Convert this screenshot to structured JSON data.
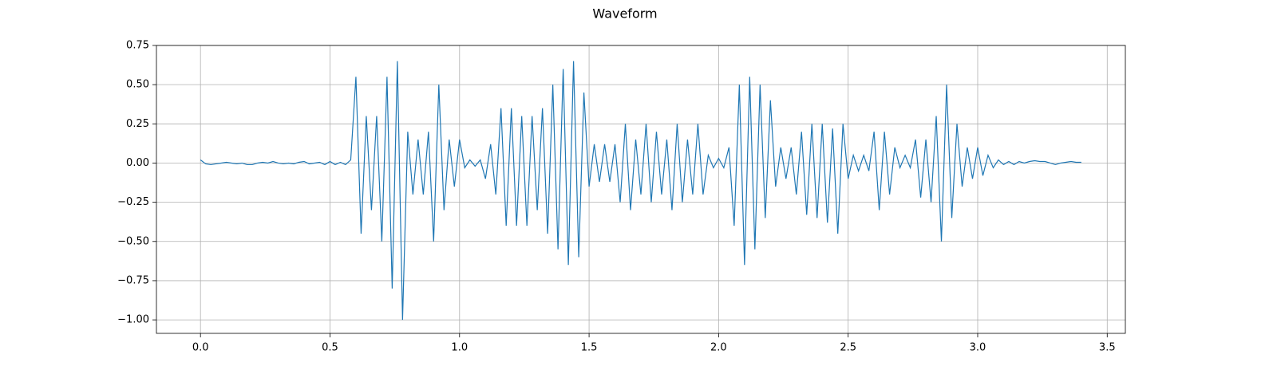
{
  "chart_data": {
    "type": "line",
    "title": "Waveform",
    "color": "#1f77b4",
    "grid": true,
    "xlim": [
      -0.17,
      3.57
    ],
    "ylim": [
      -1.086,
      0.75
    ],
    "xticks": [
      {
        "value": 0,
        "label": "0.0"
      },
      {
        "value": 0.5,
        "label": "0.5"
      },
      {
        "value": 1,
        "label": "1.0"
      },
      {
        "value": 1.5,
        "label": "1.5"
      },
      {
        "value": 2,
        "label": "2.0"
      },
      {
        "value": 2.5,
        "label": "2.5"
      },
      {
        "value": 3,
        "label": "3.0"
      },
      {
        "value": 3.5,
        "label": "3.5"
      }
    ],
    "yticks": [
      0.75,
      {
        "value": 0.5,
        "label": "0.50"
      },
      {
        "value": 0.25,
        "label": "0.25"
      },
      {
        "value": 0,
        "label": "0.00"
      },
      {
        "value": -0.25,
        "label": "−0.25"
      },
      {
        "value": -0.5,
        "label": "−0.50"
      },
      {
        "value": -0.75,
        "label": "−0.75"
      },
      {
        "value": -1,
        "label": "−1.00"
      }
    ],
    "x": [
      0,
      0.02,
      0.04,
      0.06,
      0.08,
      0.1,
      0.12,
      0.14,
      0.16,
      0.18,
      0.2,
      0.22,
      0.24,
      0.26,
      0.28,
      0.3,
      0.32,
      0.34,
      0.36,
      0.38,
      0.4,
      0.42,
      0.44,
      0.46,
      0.48,
      0.5,
      0.52,
      0.54,
      0.56,
      0.58,
      0.6,
      0.62,
      0.64,
      0.66,
      0.68,
      0.7,
      0.72,
      0.74,
      0.76,
      0.78,
      0.8,
      0.82,
      0.84,
      0.86,
      0.88,
      0.9,
      0.92,
      0.94,
      0.96,
      0.98,
      1,
      1.02,
      1.04,
      1.06,
      1.08,
      1.1,
      1.12,
      1.14,
      1.16,
      1.18,
      1.2,
      1.22,
      1.24,
      1.26,
      1.28,
      1.3,
      1.32,
      1.34,
      1.36,
      1.38,
      1.4,
      1.42,
      1.44,
      1.46,
      1.48,
      1.5,
      1.52,
      1.54,
      1.56,
      1.58,
      1.6,
      1.62,
      1.64,
      1.66,
      1.68,
      1.7,
      1.72,
      1.74,
      1.76,
      1.78,
      1.8,
      1.82,
      1.84,
      1.86,
      1.88,
      1.9,
      1.92,
      1.94,
      1.96,
      1.98,
      2,
      2.02,
      2.04,
      2.06,
      2.08,
      2.1,
      2.12,
      2.14,
      2.16,
      2.18,
      2.2,
      2.22,
      2.24,
      2.26,
      2.28,
      2.3,
      2.32,
      2.34,
      2.36,
      2.38,
      2.4,
      2.42,
      2.44,
      2.46,
      2.48,
      2.5,
      2.52,
      2.54,
      2.56,
      2.58,
      2.6,
      2.62,
      2.64,
      2.66,
      2.68,
      2.7,
      2.72,
      2.74,
      2.76,
      2.78,
      2.8,
      2.82,
      2.84,
      2.86,
      2.88,
      2.9,
      2.92,
      2.94,
      2.96,
      2.98,
      3,
      3.02,
      3.04,
      3.06,
      3.08,
      3.1,
      3.12,
      3.14,
      3.16,
      3.18,
      3.2,
      3.22,
      3.24,
      3.26,
      3.28,
      3.3,
      3.32,
      3.34,
      3.36,
      3.38,
      3.4
    ],
    "values": [
      0.02,
      -0.005,
      -0.01,
      -0.005,
      0,
      0.005,
      0,
      -0.005,
      0,
      -0.01,
      -0.01,
      0,
      0.005,
      0,
      0.01,
      0,
      -0.005,
      0,
      -0.005,
      0.005,
      0.01,
      -0.005,
      0,
      0.005,
      -0.01,
      0.01,
      -0.01,
      0.005,
      -0.01,
      0.02,
      0.55,
      -0.45,
      0.3,
      -0.3,
      0.3,
      -0.5,
      0.55,
      -0.8,
      0.65,
      -1.0,
      0.2,
      -0.2,
      0.15,
      -0.2,
      0.2,
      -0.5,
      0.5,
      -0.3,
      0.15,
      -0.15,
      0.15,
      -0.03,
      0.02,
      -0.02,
      0.02,
      -0.1,
      0.12,
      -0.2,
      0.35,
      -0.4,
      0.35,
      -0.4,
      0.3,
      -0.4,
      0.3,
      -0.3,
      0.35,
      -0.45,
      0.5,
      -0.55,
      0.6,
      -0.65,
      0.65,
      -0.6,
      0.45,
      -0.15,
      0.12,
      -0.12,
      0.12,
      -0.12,
      0.12,
      -0.25,
      0.25,
      -0.3,
      0.15,
      -0.2,
      0.25,
      -0.25,
      0.2,
      -0.2,
      0.15,
      -0.3,
      0.25,
      -0.25,
      0.15,
      -0.2,
      0.25,
      -0.2,
      0.05,
      -0.03,
      0.03,
      -0.03,
      0.1,
      -0.4,
      0.5,
      -0.65,
      0.55,
      -0.55,
      0.5,
      -0.35,
      0.4,
      -0.15,
      0.1,
      -0.1,
      0.1,
      -0.2,
      0.2,
      -0.33,
      0.25,
      -0.35,
      0.25,
      -0.38,
      0.22,
      -0.45,
      0.25,
      -0.1,
      0.05,
      -0.05,
      0.05,
      -0.05,
      0.2,
      -0.3,
      0.2,
      -0.2,
      0.1,
      -0.03,
      0.05,
      -0.03,
      0.15,
      -0.22,
      0.15,
      -0.25,
      0.3,
      -0.5,
      0.5,
      -0.35,
      0.25,
      -0.15,
      0.1,
      -0.1,
      0.1,
      -0.08,
      0.05,
      -0.03,
      0.02,
      -0.01,
      0.01,
      -0.01,
      0.01,
      0,
      0.01,
      0.015,
      0.01,
      0.01,
      0,
      -0.01,
      0,
      0.005,
      0.01,
      0.005,
      0.005
    ]
  }
}
